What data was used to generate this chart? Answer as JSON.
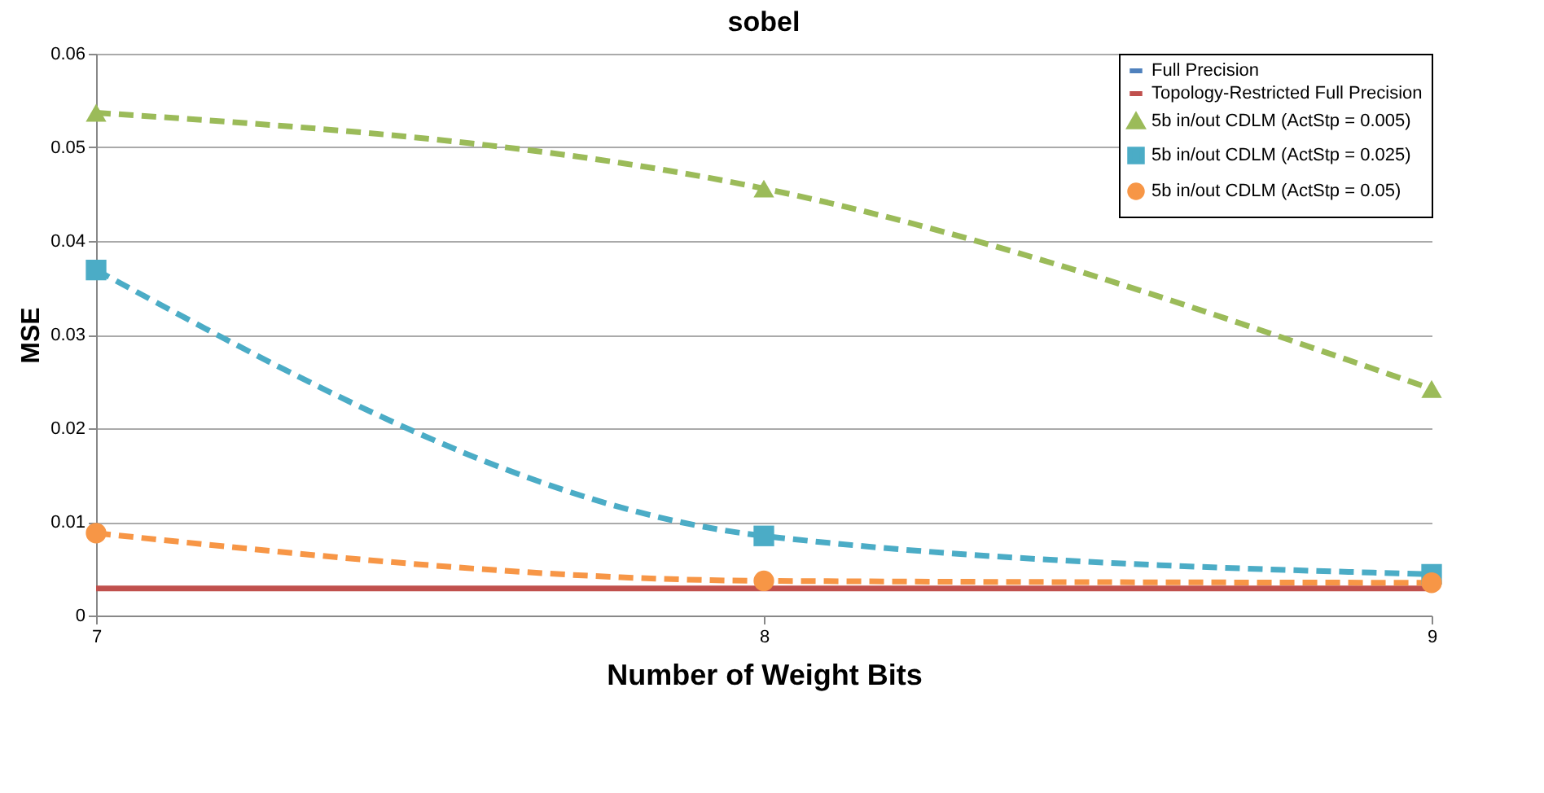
{
  "chart_data": {
    "type": "line",
    "title": "sobel",
    "xlabel": "Number of Weight Bits",
    "ylabel": "MSE",
    "x": [
      7,
      8,
      9
    ],
    "xlim": [
      7,
      9
    ],
    "xticks": [
      7,
      8,
      9
    ],
    "ylim": [
      0,
      0.06
    ],
    "yticks": [
      0,
      0.01,
      0.02,
      0.03,
      0.04,
      0.05,
      0.06
    ],
    "grid": "y",
    "legend": "top right",
    "series": [
      {
        "name": "Full Precision",
        "color": "#4f81bd",
        "values": [
          null,
          null,
          null
        ],
        "marker": "none",
        "line_style": "solid"
      },
      {
        "name": "Topology-Restricted Full Precision",
        "color": "#c0504d",
        "values": [
          0.0029,
          0.0029,
          0.0029
        ],
        "marker": "none",
        "line_style": "solid"
      },
      {
        "name": "5b in/out CDLM (ActStp =  0.005)",
        "color": "#9bbb59",
        "values": [
          0.0537,
          0.0456,
          0.0242
        ],
        "marker": "triangle",
        "line_style": "dashed"
      },
      {
        "name": "5b in/out CDLM (ActStp =  0.025)",
        "color": "#4bacc6",
        "values": [
          0.0369,
          0.0085,
          0.0044
        ],
        "marker": "square",
        "line_style": "dashed"
      },
      {
        "name": "5b in/out CDLM (ActStp = 0.05)",
        "color": "#f79646",
        "values": [
          0.0088,
          0.0037,
          0.0035
        ],
        "marker": "circle",
        "line_style": "dashed"
      }
    ]
  }
}
